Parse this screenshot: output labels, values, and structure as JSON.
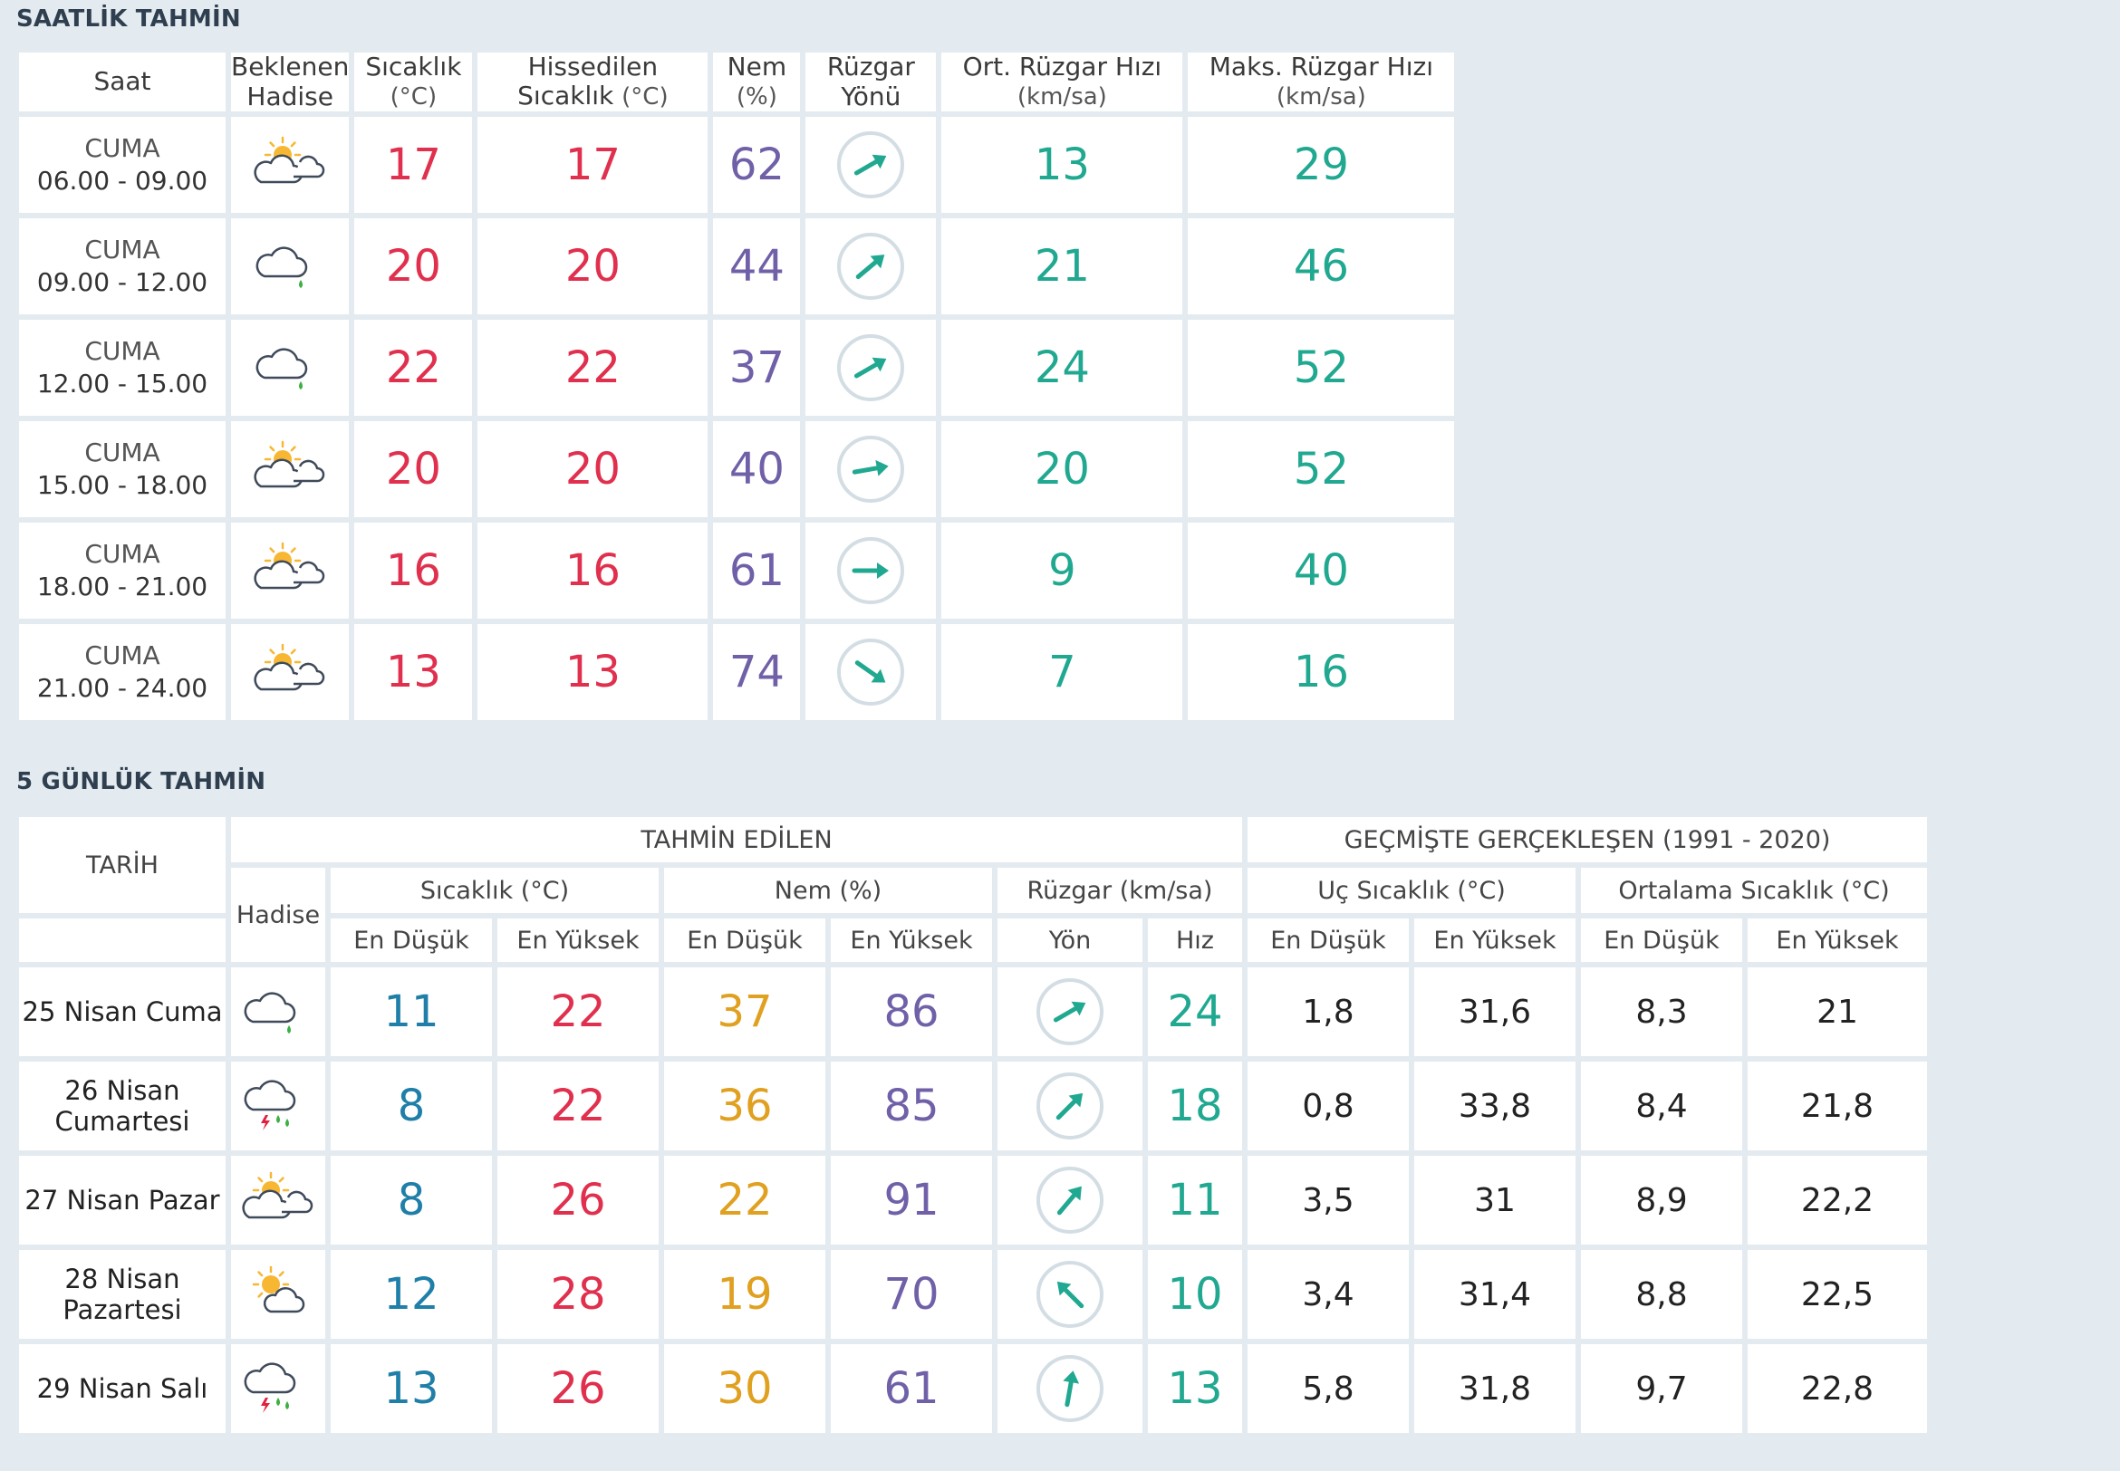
{
  "hourly": {
    "title": "SAATLİK TAHMİN",
    "headers": {
      "saat": "Saat",
      "hadise_line1": "Beklenen",
      "hadise_line2": "Hadise",
      "sicaklik": "Sıcaklık",
      "sicaklik_unit": "(°C)",
      "hissedilen": "Hissedilen Sıcaklık",
      "hissedilen_unit": "(°C)",
      "nem": "Nem",
      "nem_unit": "(%)",
      "ruzgar_yonu": "Rüzgar Yönü",
      "ort_ruzgar": "Ort. Rüzgar Hızı",
      "ort_ruzgar_unit": "(km/sa)",
      "maks_ruzgar": "Maks. Rüzgar Hızı",
      "maks_ruzgar_unit": "(km/sa)"
    },
    "rows": [
      {
        "day": "CUMA",
        "time": "06.00 - 09.00",
        "icon": "partly-sunny-icon",
        "temp": "17",
        "feels": "17",
        "humidity": "62",
        "wind_angle": -30,
        "wind_avg": "13",
        "wind_max": "29"
      },
      {
        "day": "CUMA",
        "time": "09.00 - 12.00",
        "icon": "cloud-rain-icon",
        "temp": "20",
        "feels": "20",
        "humidity": "44",
        "wind_angle": -40,
        "wind_avg": "21",
        "wind_max": "46"
      },
      {
        "day": "CUMA",
        "time": "12.00 - 15.00",
        "icon": "cloud-rain-icon",
        "temp": "22",
        "feels": "22",
        "humidity": "37",
        "wind_angle": -30,
        "wind_avg": "24",
        "wind_max": "52"
      },
      {
        "day": "CUMA",
        "time": "15.00 - 18.00",
        "icon": "partly-sunny-icon",
        "temp": "20",
        "feels": "20",
        "humidity": "40",
        "wind_angle": -10,
        "wind_avg": "20",
        "wind_max": "52"
      },
      {
        "day": "CUMA",
        "time": "18.00 - 21.00",
        "icon": "partly-sunny-icon",
        "temp": "16",
        "feels": "16",
        "humidity": "61",
        "wind_angle": 0,
        "wind_avg": "9",
        "wind_max": "40"
      },
      {
        "day": "CUMA",
        "time": "21.00 - 24.00",
        "icon": "partly-sunny-icon",
        "temp": "13",
        "feels": "13",
        "humidity": "74",
        "wind_angle": 35,
        "wind_avg": "7",
        "wind_max": "16"
      }
    ]
  },
  "daily": {
    "title": "5 GÜNLÜK TAHMİN",
    "headers": {
      "tarih": "TARİH",
      "tahmin_edilen": "TAHMİN EDİLEN",
      "gecmiste": "GEÇMİŞTE GERÇEKLEŞEN (1991 - 2020)",
      "hadise": "Hadise",
      "sicaklik": "Sıcaklık (°C)",
      "nem": "Nem (%)",
      "ruzgar": "Rüzgar (km/sa)",
      "uc_sicaklik": "Uç Sıcaklık (°C)",
      "ort_sicaklik": "Ortalama Sıcaklık (°C)",
      "en_dusuk": "En Düşük",
      "en_yuksek": "En Yüksek",
      "yon": "Yön",
      "hiz": "Hız"
    },
    "rows": [
      {
        "date": "25 Nisan Cuma",
        "icon": "cloud-rain-icon",
        "tmin": "11",
        "tmax": "22",
        "hmin": "37",
        "hmax": "86",
        "wind_angle": -30,
        "wind_speed": "24",
        "ext_min": "1,8",
        "ext_max": "31,6",
        "avg_min": "8,3",
        "avg_max": "21"
      },
      {
        "date": "26 Nisan Cumartesi",
        "icon": "thunderstorm-icon",
        "tmin": "8",
        "tmax": "22",
        "hmin": "36",
        "hmax": "85",
        "wind_angle": -45,
        "wind_speed": "18",
        "ext_min": "0,8",
        "ext_max": "33,8",
        "avg_min": "8,4",
        "avg_max": "21,8"
      },
      {
        "date": "27 Nisan Pazar",
        "icon": "partly-sunny-icon",
        "tmin": "8",
        "tmax": "26",
        "hmin": "22",
        "hmax": "91",
        "wind_angle": -50,
        "wind_speed": "11",
        "ext_min": "3,5",
        "ext_max": "31",
        "avg_min": "8,9",
        "avg_max": "22,2"
      },
      {
        "date": "28 Nisan Pazartesi",
        "icon": "sunny-cloud-icon",
        "tmin": "12",
        "tmax": "28",
        "hmin": "19",
        "hmax": "70",
        "wind_angle": -135,
        "wind_speed": "10",
        "ext_min": "3,4",
        "ext_max": "31,4",
        "avg_min": "8,8",
        "avg_max": "22,5"
      },
      {
        "date": "29 Nisan Salı",
        "icon": "thunderstorm-icon",
        "tmin": "13",
        "tmax": "26",
        "hmin": "30",
        "hmax": "61",
        "wind_angle": -80,
        "wind_speed": "13",
        "ext_min": "5,8",
        "ext_max": "31,8",
        "avg_min": "9,7",
        "avg_max": "22,8"
      }
    ]
  },
  "colors": {
    "temp": "#e0304e",
    "humidity": "#7060a8",
    "wind": "#20a890",
    "min": "#1f7fa8",
    "humidity_min": "#e0a020"
  }
}
